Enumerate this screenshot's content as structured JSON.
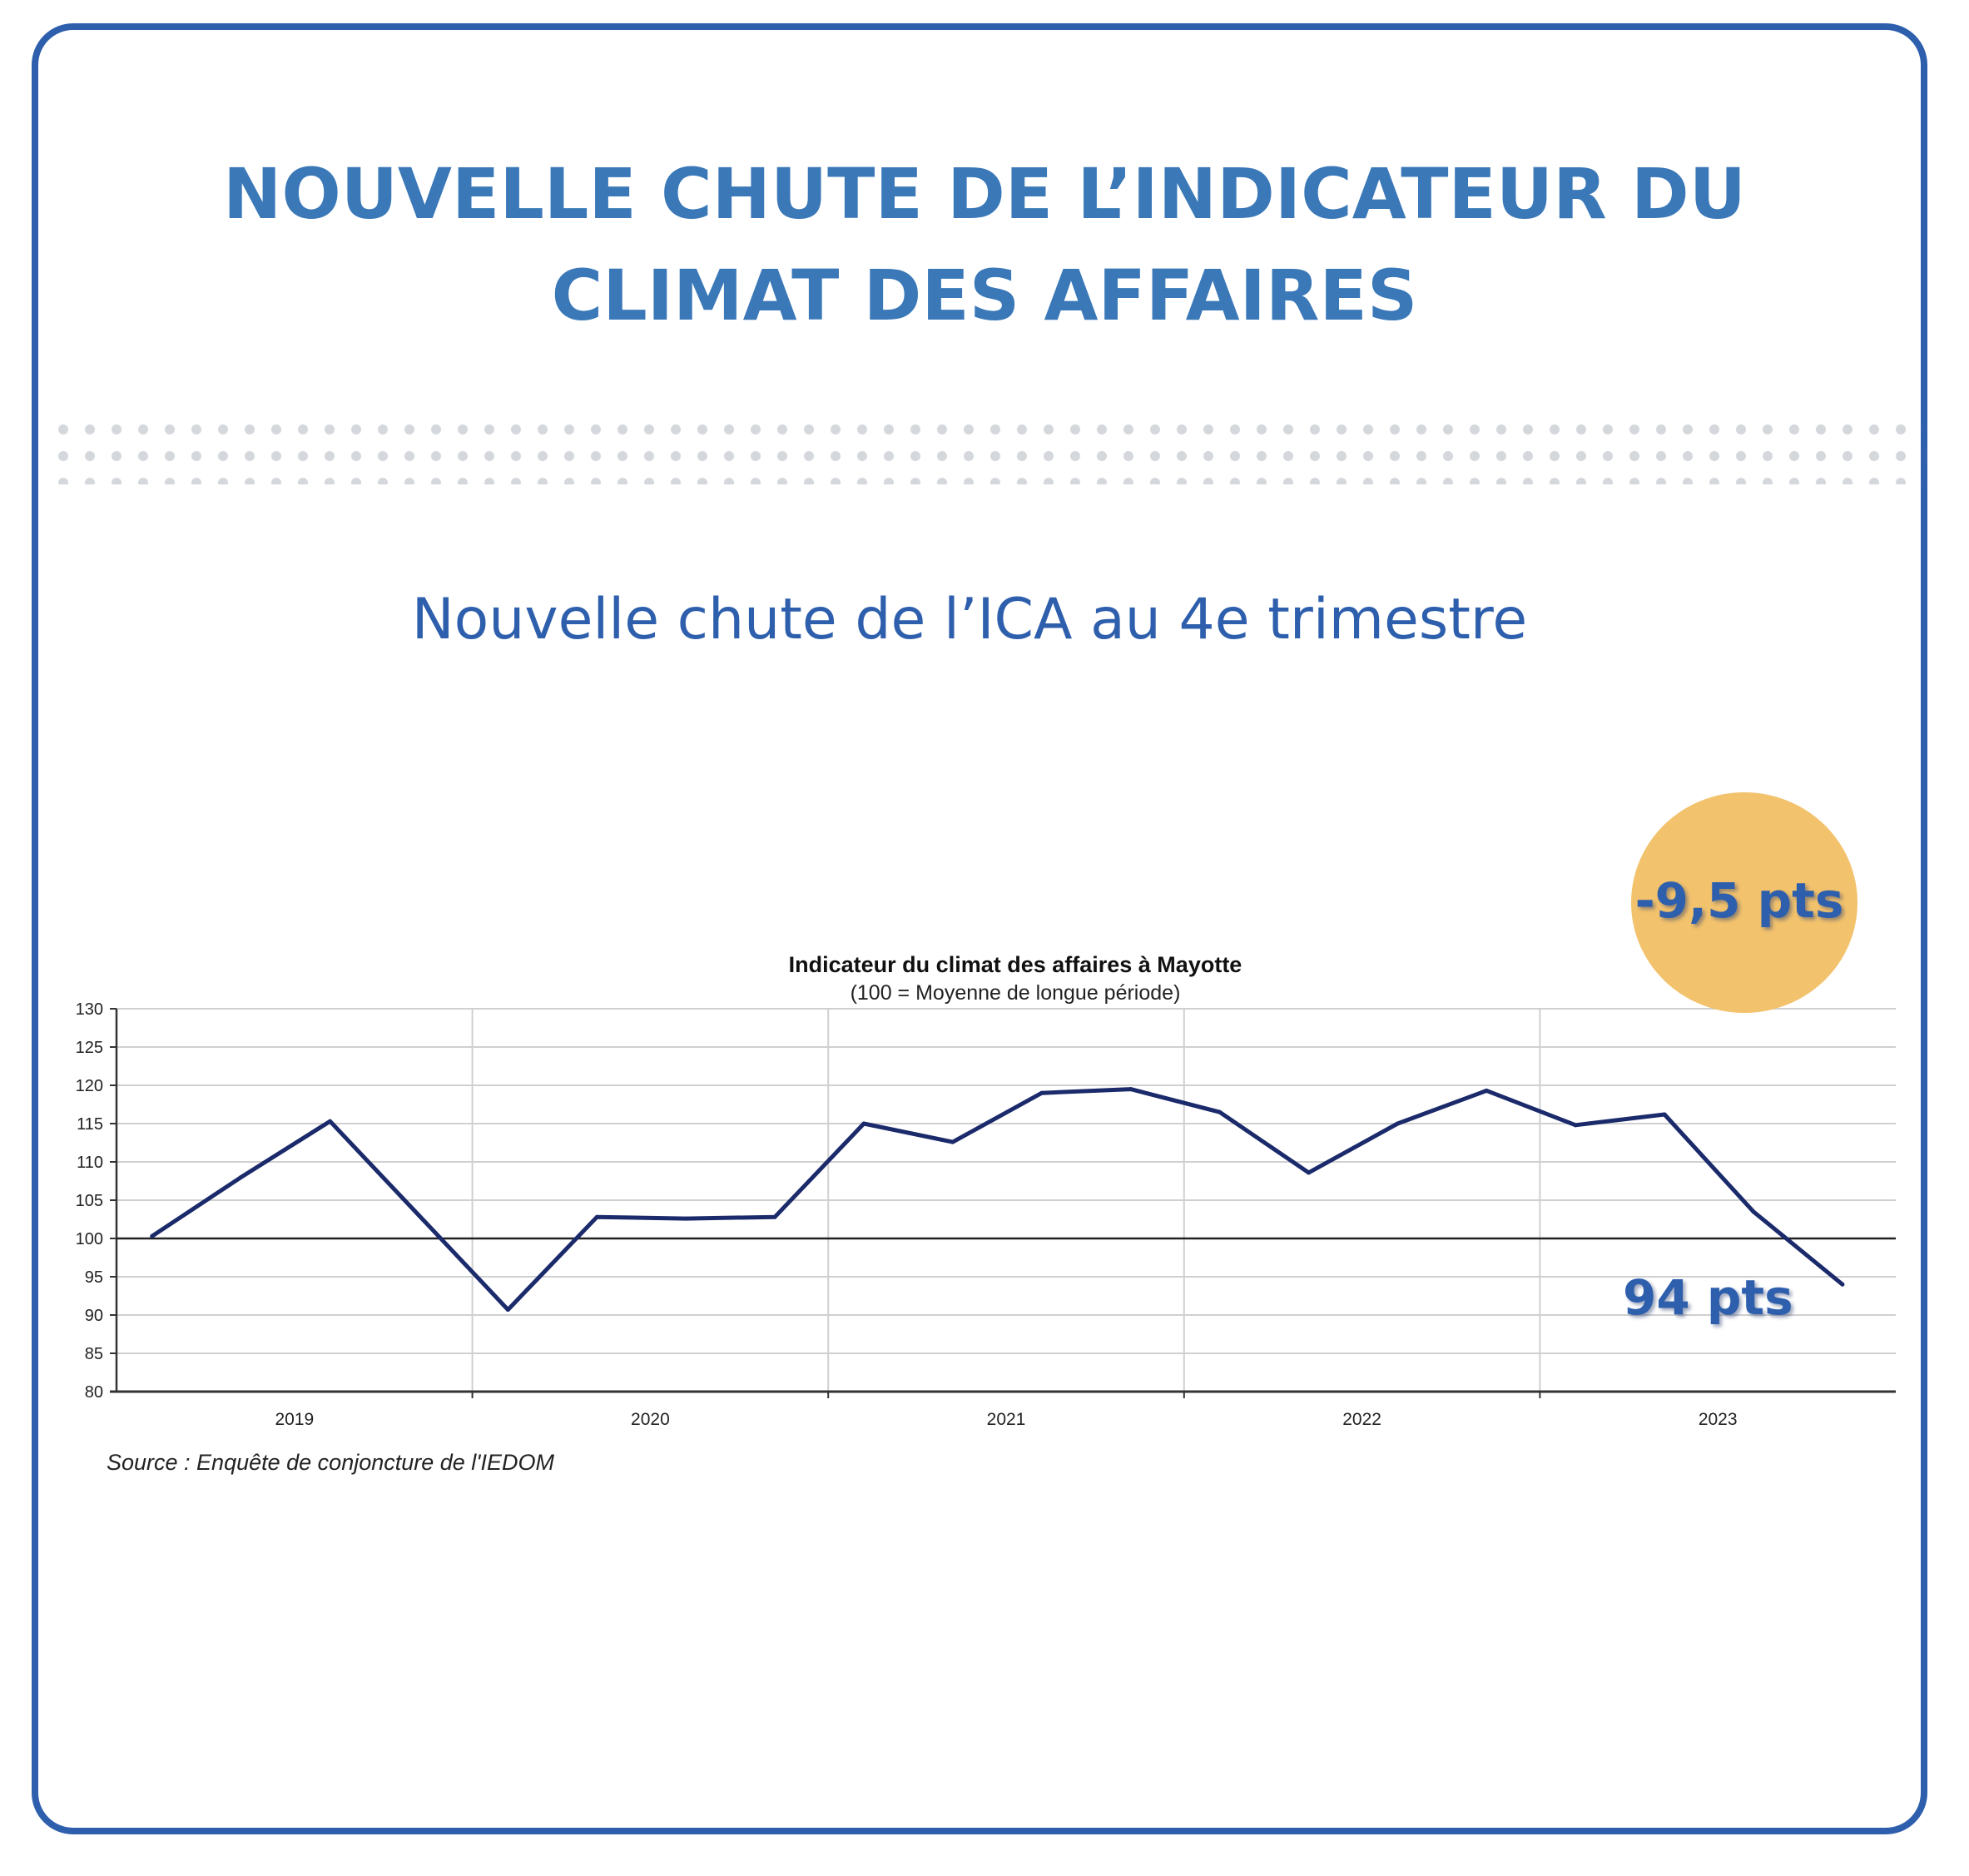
{
  "header": {
    "title_line1": "NOUVELLE CHUTE DE L’INDICATEUR DU",
    "title_line2": "CLIMAT DES AFFAIRES",
    "subtitle": "Nouvelle chute de l’ICA au 4e trimestre"
  },
  "callouts": {
    "change": "-9,5 pts",
    "last_value": "94 pts"
  },
  "colors": {
    "brand_blue": "#2e5fad",
    "title_blue": "#3a78b8",
    "badge": "#f2c26d",
    "series_line": "#1b2a6b"
  },
  "chart_data": {
    "type": "line",
    "title": "Indicateur du climat des affaires à Mayotte",
    "subtitle": "(100 = Moyenne de longue période)",
    "source": "Source : Enquête de conjoncture de l'IEDOM",
    "ylim": [
      80,
      130
    ],
    "yticks": [
      "80",
      "85",
      "90",
      "95",
      "100",
      "105",
      "110",
      "115",
      "120",
      "125",
      "130"
    ],
    "year_labels": [
      "2019",
      "2020",
      "2021",
      "2022",
      "2023"
    ],
    "x_range": [
      2018.5,
      2023.5
    ],
    "grid": true,
    "reference_line": 100,
    "series": [
      {
        "x": [
          2018.6,
          2018.85,
          2019.1,
          2019.35,
          2019.6,
          2019.85,
          2020.1,
          2020.35,
          2020.6,
          2020.85,
          2021.1,
          2021.35,
          2021.6,
          2021.85,
          2022.1,
          2022.35,
          2022.6,
          2022.85,
          2023.1,
          2023.35
        ],
        "values": [
          100.3,
          108,
          115.3,
          103,
          90.7,
          102.8,
          102.6,
          102.8,
          115,
          112.6,
          119,
          119.5,
          116.5,
          108.6,
          115,
          119.3,
          114.8,
          116.2,
          103.5,
          94
        ]
      }
    ]
  }
}
